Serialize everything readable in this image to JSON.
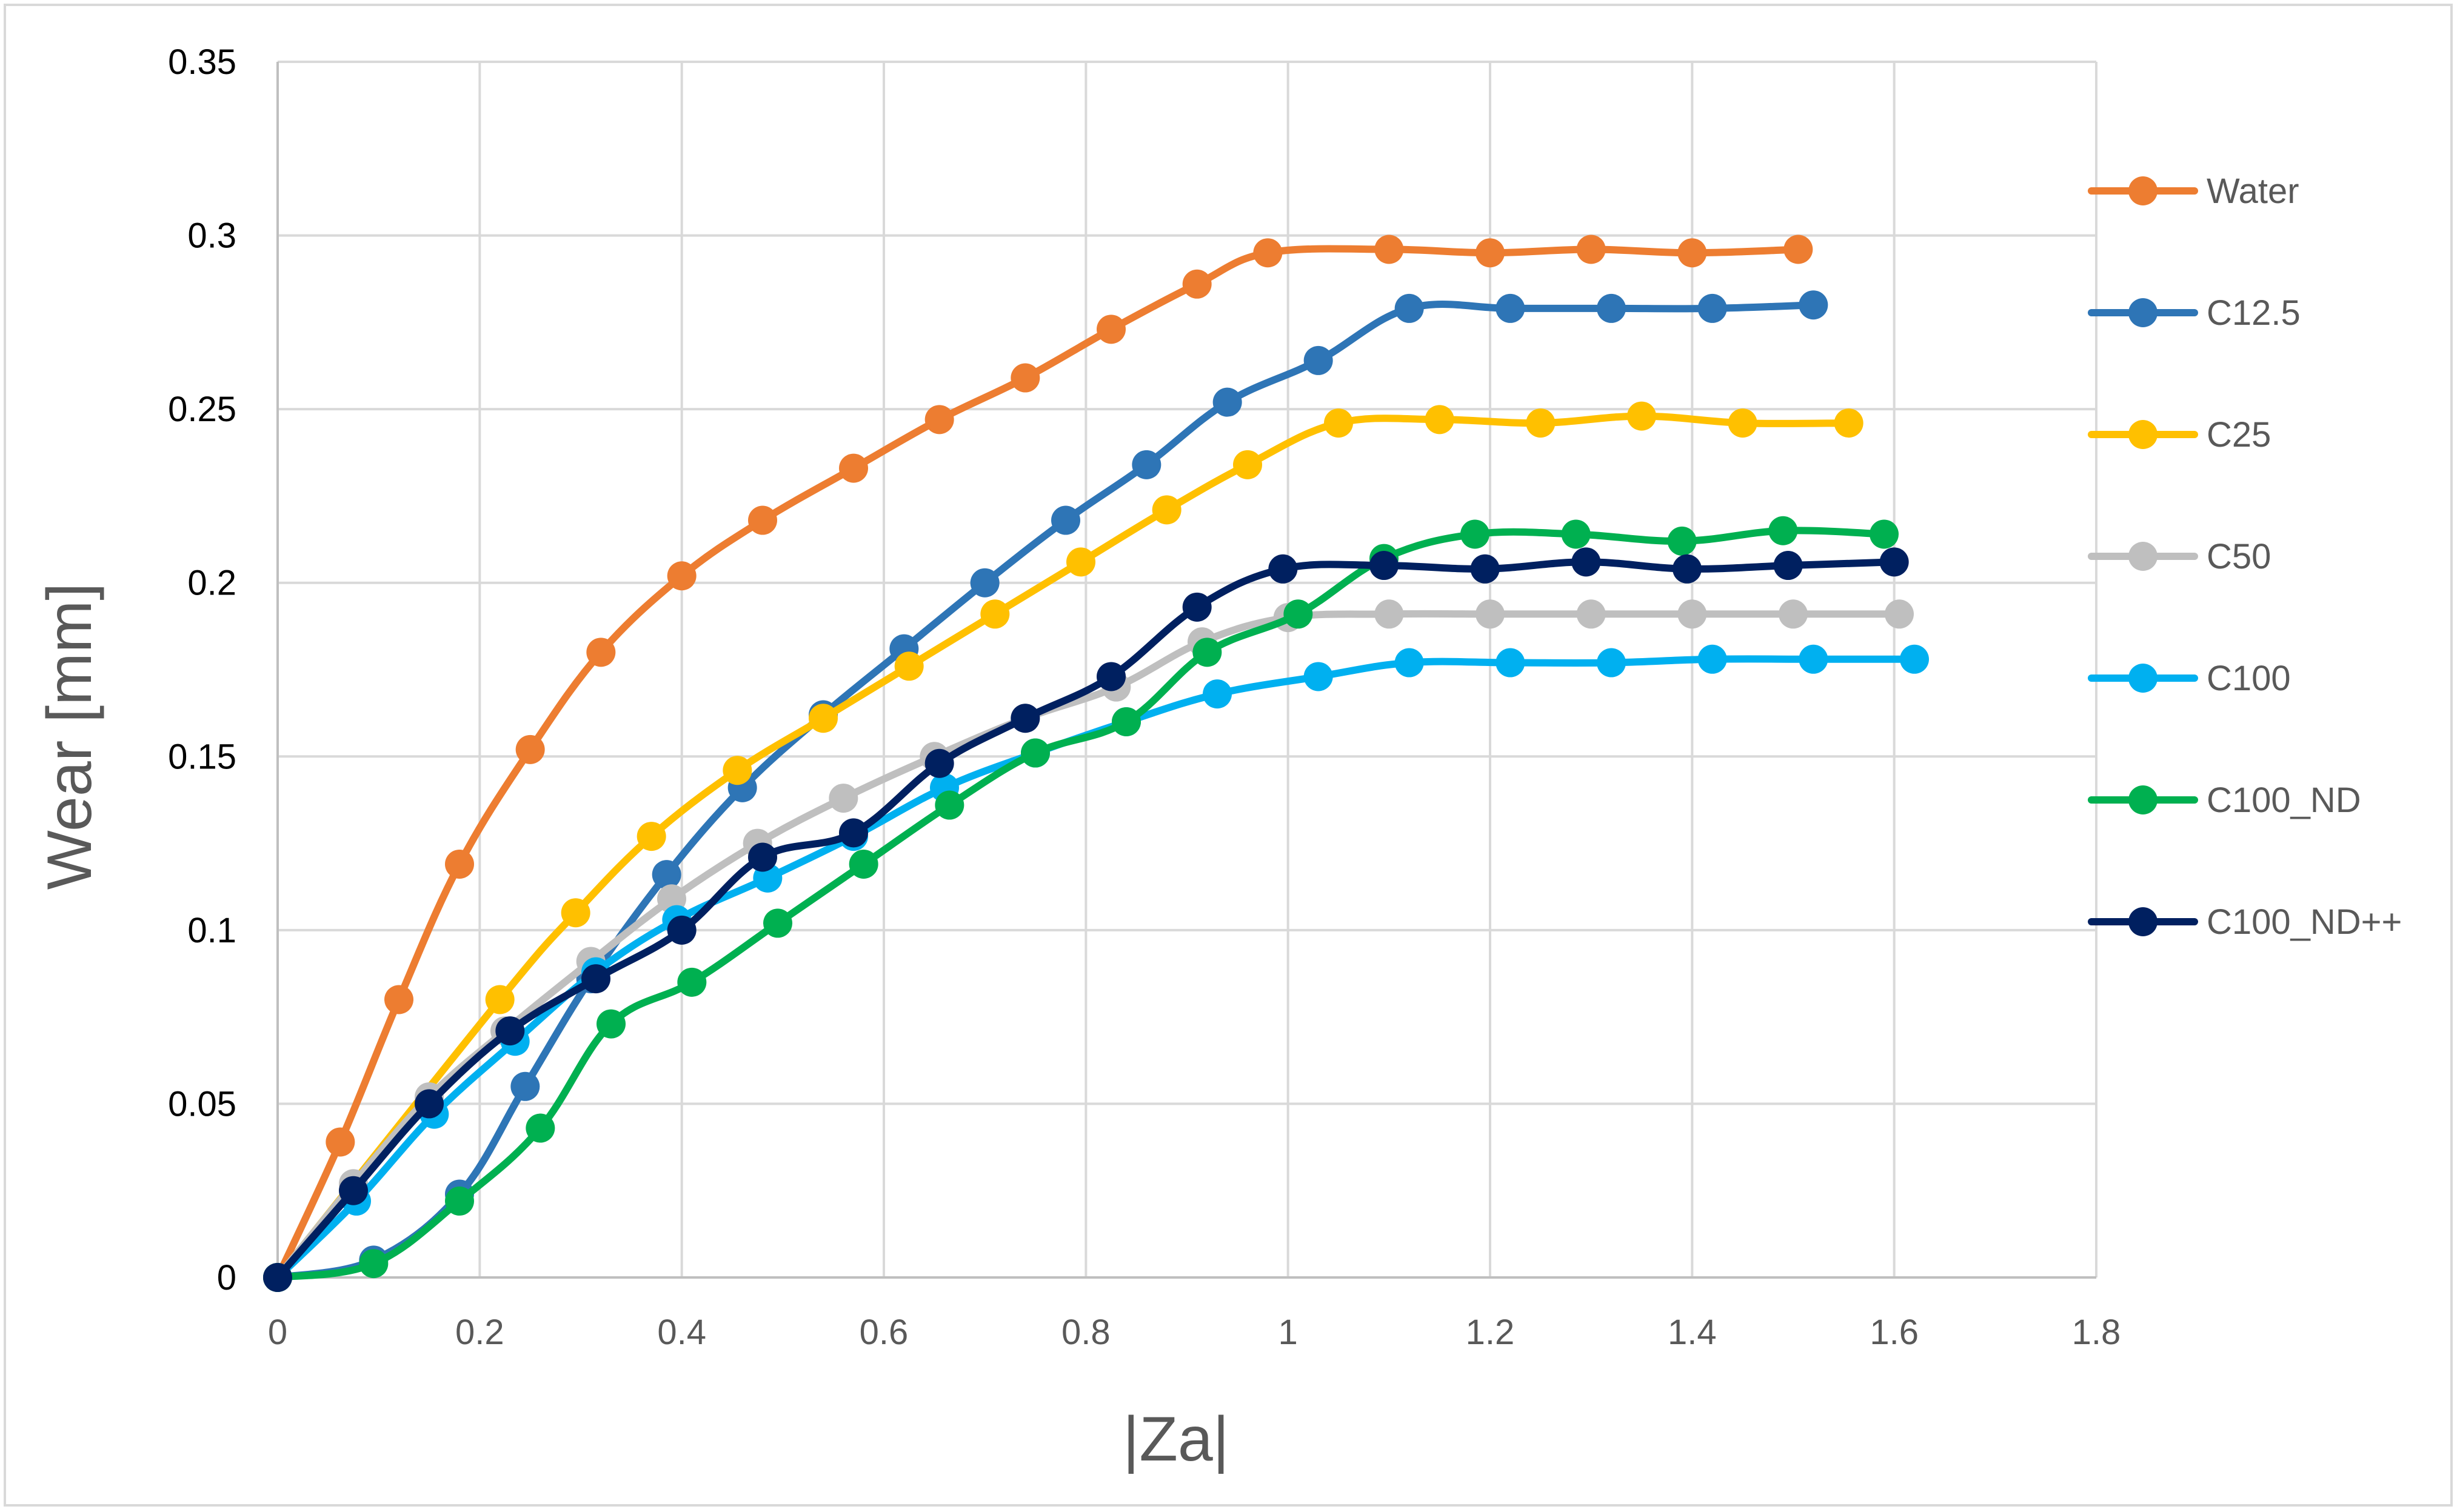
{
  "chart_data": {
    "type": "line",
    "title": "",
    "xlabel": "|Za|",
    "ylabel": "Wear [mm]",
    "xlim": [
      0,
      1.8
    ],
    "ylim": [
      0,
      0.35
    ],
    "x_ticks": [
      "0",
      "0.2",
      "0.4",
      "0.6",
      "0.8",
      "1",
      "1.2",
      "1.4",
      "1.6",
      "1.8"
    ],
    "y_ticks": [
      "0",
      "0.05",
      "0.1",
      "0.15",
      "0.2",
      "0.25",
      "0.3",
      "0.35"
    ],
    "grid": true,
    "legend_position": "right",
    "series": [
      {
        "name": "Water",
        "color": "#ed7d31",
        "x": [
          0,
          0.062,
          0.12,
          0.18,
          0.25,
          0.32,
          0.4,
          0.48,
          0.57,
          0.655,
          0.74,
          0.825,
          0.91,
          0.98,
          1.1,
          1.2,
          1.3,
          1.4,
          1.505
        ],
        "y": [
          0,
          0.039,
          0.08,
          0.119,
          0.152,
          0.18,
          0.202,
          0.218,
          0.233,
          0.247,
          0.259,
          0.273,
          0.286,
          0.295,
          0.296,
          0.295,
          0.296,
          0.295,
          0.296
        ]
      },
      {
        "name": "C12.5",
        "color": "#2e75b6",
        "x": [
          0,
          0.095,
          0.18,
          0.245,
          0.31,
          0.385,
          0.46,
          0.54,
          0.62,
          0.7,
          0.78,
          0.86,
          0.94,
          1.03,
          1.12,
          1.22,
          1.32,
          1.42,
          1.52
        ],
        "y": [
          0,
          0.005,
          0.024,
          0.055,
          0.086,
          0.116,
          0.141,
          0.162,
          0.181,
          0.2,
          0.218,
          0.234,
          0.252,
          0.264,
          0.279,
          0.279,
          0.279,
          0.279,
          0.28
        ]
      },
      {
        "name": "C25",
        "color": "#ffc000",
        "x": [
          0,
          0.22,
          0.295,
          0.37,
          0.455,
          0.54,
          0.625,
          0.71,
          0.795,
          0.88,
          0.96,
          1.05,
          1.15,
          1.25,
          1.35,
          1.45,
          1.555
        ],
        "y": [
          0,
          0.08,
          0.105,
          0.127,
          0.146,
          0.161,
          0.176,
          0.191,
          0.206,
          0.221,
          0.234,
          0.246,
          0.247,
          0.246,
          0.248,
          0.246,
          0.246
        ]
      },
      {
        "name": "C50",
        "color": "#bfbfbf",
        "x": [
          0,
          0.075,
          0.15,
          0.225,
          0.31,
          0.39,
          0.475,
          0.56,
          0.65,
          0.74,
          0.83,
          0.915,
          1.0,
          1.1,
          1.2,
          1.3,
          1.4,
          1.5,
          1.605
        ],
        "y": [
          0,
          0.027,
          0.052,
          0.071,
          0.091,
          0.109,
          0.125,
          0.138,
          0.15,
          0.161,
          0.17,
          0.183,
          0.19,
          0.191,
          0.191,
          0.191,
          0.191,
          0.191,
          0.191
        ]
      },
      {
        "name": "C100",
        "color": "#00b0f0",
        "x": [
          0,
          0.078,
          0.155,
          0.235,
          0.315,
          0.395,
          0.485,
          0.57,
          0.66,
          0.75,
          0.84,
          0.93,
          1.03,
          1.12,
          1.22,
          1.32,
          1.42,
          1.52,
          1.62
        ],
        "y": [
          0,
          0.022,
          0.047,
          0.068,
          0.088,
          0.103,
          0.115,
          0.127,
          0.141,
          0.151,
          0.16,
          0.168,
          0.173,
          0.177,
          0.177,
          0.177,
          0.178,
          0.178,
          0.178
        ]
      },
      {
        "name": "C100_ND",
        "color": "#00b050",
        "x": [
          0,
          0.095,
          0.18,
          0.26,
          0.33,
          0.41,
          0.495,
          0.58,
          0.665,
          0.75,
          0.84,
          0.92,
          1.01,
          1.095,
          1.185,
          1.285,
          1.39,
          1.49,
          1.59
        ],
        "y": [
          0,
          0.004,
          0.022,
          0.043,
          0.073,
          0.085,
          0.102,
          0.119,
          0.136,
          0.151,
          0.16,
          0.18,
          0.191,
          0.207,
          0.214,
          0.214,
          0.212,
          0.215,
          0.214
        ]
      },
      {
        "name": "C100_ND++",
        "color": "#002060",
        "x": [
          0,
          0.075,
          0.15,
          0.23,
          0.315,
          0.4,
          0.48,
          0.57,
          0.655,
          0.74,
          0.825,
          0.91,
          0.995,
          1.095,
          1.195,
          1.295,
          1.395,
          1.495,
          1.6
        ],
        "y": [
          0,
          0.025,
          0.05,
          0.071,
          0.086,
          0.1,
          0.121,
          0.128,
          0.148,
          0.161,
          0.173,
          0.193,
          0.204,
          0.205,
          0.204,
          0.206,
          0.204,
          0.205,
          0.206
        ]
      }
    ]
  }
}
